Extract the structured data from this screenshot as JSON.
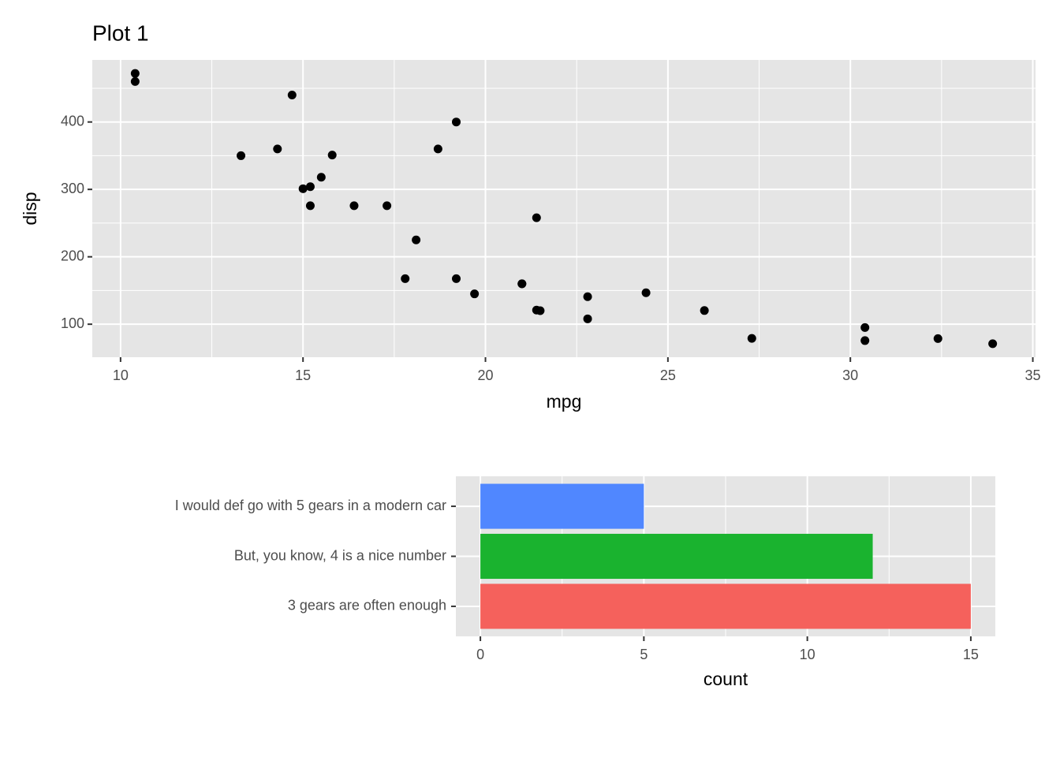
{
  "chart_data": [
    {
      "type": "scatter",
      "title": "Plot 1",
      "xlabel": "mpg",
      "ylabel": "disp",
      "color": "#000000",
      "x": [
        21,
        21,
        22.8,
        21.4,
        18.7,
        18.1,
        14.3,
        24.4,
        22.8,
        19.2,
        17.8,
        16.4,
        17.3,
        15.2,
        10.4,
        10.4,
        14.7,
        32.4,
        30.4,
        33.9,
        21.5,
        15.5,
        15.2,
        13.3,
        19.2,
        27.3,
        26,
        30.4,
        15.8,
        19.7,
        15,
        21.4
      ],
      "values": [
        160,
        160,
        108,
        258,
        360,
        225,
        360,
        146.7,
        140.8,
        167.6,
        167.6,
        275.8,
        275.8,
        275.8,
        472,
        460,
        440,
        78.7,
        75.7,
        71.1,
        120.1,
        318,
        304,
        350,
        400,
        79,
        120.3,
        95.1,
        351,
        145,
        301,
        121
      ],
      "xlim": [
        9.225,
        35.075
      ],
      "xticks": [
        10,
        15,
        20,
        25,
        30,
        35
      ],
      "ylim": [
        51.055,
        492.045
      ],
      "yticks": [
        100,
        200,
        300,
        400
      ],
      "grid": true
    },
    {
      "type": "barh",
      "xlabel": "count",
      "categories": [
        "I would def go with 5 gears in a modern car",
        "But, you know, 4 is a nice number",
        "3 gears are often enough"
      ],
      "values": [
        5,
        12,
        15
      ],
      "colors": [
        "#5087FF",
        "#1AB32F",
        "#F5615C"
      ],
      "xlim": [
        -0.75,
        15.75
      ],
      "xticks": [
        0,
        5,
        10,
        15
      ],
      "grid": true
    }
  ]
}
